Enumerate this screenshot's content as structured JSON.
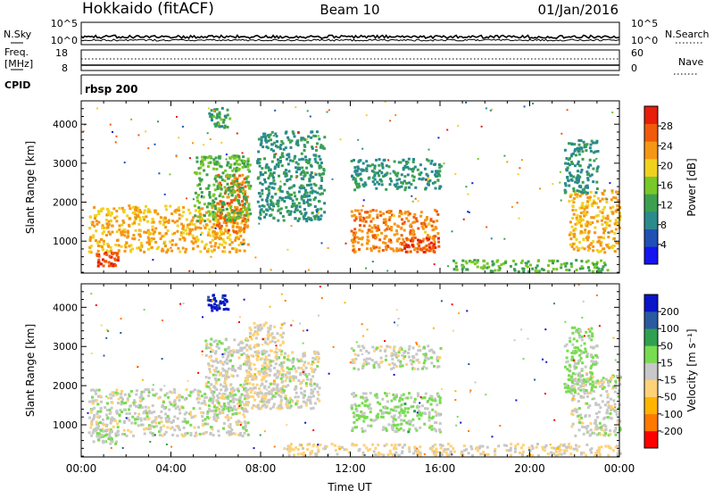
{
  "header": {
    "station": "Hokkaido (fitACF)",
    "beam": "Beam 10",
    "date": "01/Jan/2016"
  },
  "strips": {
    "nsky_label": "N.Sky",
    "nsky_ticks": [
      "10^5",
      "10^0"
    ],
    "nsearch_label": "N.Search",
    "freq_label_1": "Freq.",
    "freq_label_2": "[MHz]",
    "freq_ticks": [
      "18",
      "8"
    ],
    "nave_ticks": [
      "60",
      "0"
    ],
    "nave_label": "Nave",
    "cpid_label": "CPID",
    "cpid_value": "rbsp 200"
  },
  "chart_data": [
    {
      "type": "heatmap",
      "title": "",
      "xlabel": "",
      "ylabel": "Slant Range [km]",
      "xlim": [
        "00:00",
        "24:00"
      ],
      "ylim": [
        180,
        4600
      ],
      "yticks": [
        "1000",
        "2000",
        "3000",
        "4000"
      ],
      "grid": false,
      "colorbar": {
        "label": "Power [dB]",
        "range": [
          0,
          32
        ],
        "ticks": [
          "4",
          "8",
          "12",
          "16",
          "20",
          "24",
          "28"
        ],
        "colors": [
          "#1414f0",
          "#2050b4",
          "#2a8a8c",
          "#3ca050",
          "#78c828",
          "#f0d21e",
          "#f59614",
          "#f05a0a",
          "#e61e0a"
        ]
      },
      "features": [
        {
          "t": [
            0.3,
            7.4
          ],
          "range": [
            700,
            1900
          ],
          "value": 22
        },
        {
          "t": [
            0.6,
            1.6
          ],
          "range": [
            350,
            700
          ],
          "value": 28
        },
        {
          "t": [
            6.0,
            7.4
          ],
          "range": [
            1200,
            2700
          ],
          "value": 26
        },
        {
          "t": [
            5.0,
            7.5
          ],
          "range": [
            1500,
            3200
          ],
          "value": 14
        },
        {
          "t": [
            5.6,
            6.6
          ],
          "range": [
            3900,
            4400
          ],
          "value": 12
        },
        {
          "t": [
            7.8,
            10.8
          ],
          "range": [
            1500,
            3800
          ],
          "value": 10
        },
        {
          "t": [
            12.0,
            15.9
          ],
          "range": [
            700,
            1800
          ],
          "value": 24
        },
        {
          "t": [
            14.2,
            15.9
          ],
          "range": [
            700,
            1100
          ],
          "value": 28
        },
        {
          "t": [
            12.0,
            16.0
          ],
          "range": [
            2300,
            3100
          ],
          "value": 10
        },
        {
          "t": [
            16.5,
            23.5
          ],
          "range": [
            200,
            500
          ],
          "value": 14
        },
        {
          "t": [
            21.7,
            24.0
          ],
          "range": [
            700,
            2300
          ],
          "value": 22
        },
        {
          "t": [
            21.5,
            23.0
          ],
          "range": [
            2200,
            3600
          ],
          "value": 10
        }
      ]
    },
    {
      "type": "heatmap",
      "title": "",
      "xlabel": "Time UT",
      "ylabel": "Slant Range [km]",
      "xlim": [
        "00:00",
        "24:00"
      ],
      "ylim": [
        180,
        4600
      ],
      "xticks": [
        "00:00",
        "04:00",
        "08:00",
        "12:00",
        "16:00",
        "20:00",
        "00:00"
      ],
      "yticks": [
        "1000",
        "2000",
        "3000",
        "4000"
      ],
      "grid": false,
      "colorbar": {
        "label": "Velocity [m s⁻¹]",
        "range": [
          -250,
          250
        ],
        "ticks": [
          "200",
          "100",
          "50",
          "15",
          "-15",
          "-50",
          "-100",
          "-200"
        ],
        "colors": [
          "#ff0000",
          "#ff7800",
          "#ffb400",
          "#ffd278",
          "#c8c8c8",
          "#78dc50",
          "#2ea050",
          "#2a5aa0",
          "#0a14c8"
        ]
      },
      "features": [
        {
          "t": [
            0.3,
            7.4
          ],
          "range": [
            700,
            1900
          ],
          "value": 0
        },
        {
          "t": [
            5.5,
            7.5
          ],
          "range": [
            1300,
            3200
          ],
          "value": 0
        },
        {
          "t": [
            0.5,
            1.6
          ],
          "range": [
            500,
            900
          ],
          "value": 30
        },
        {
          "t": [
            5.6,
            6.6
          ],
          "range": [
            3900,
            4300
          ],
          "value": 220
        },
        {
          "t": [
            7.3,
            9.0
          ],
          "range": [
            1400,
            3600
          ],
          "value": -40
        },
        {
          "t": [
            8.0,
            10.6
          ],
          "range": [
            1400,
            2900
          ],
          "value": 0
        },
        {
          "t": [
            12.0,
            16.0
          ],
          "range": [
            800,
            1800
          ],
          "value": 40
        },
        {
          "t": [
            12.0,
            16.0
          ],
          "range": [
            2400,
            3000
          ],
          "value": 0
        },
        {
          "t": [
            9.0,
            24.0
          ],
          "range": [
            200,
            500
          ],
          "value": -40
        },
        {
          "t": [
            21.8,
            24.0
          ],
          "range": [
            700,
            2300
          ],
          "value": 0
        },
        {
          "t": [
            21.5,
            23.0
          ],
          "range": [
            1800,
            3500
          ],
          "value": 35
        }
      ]
    }
  ]
}
